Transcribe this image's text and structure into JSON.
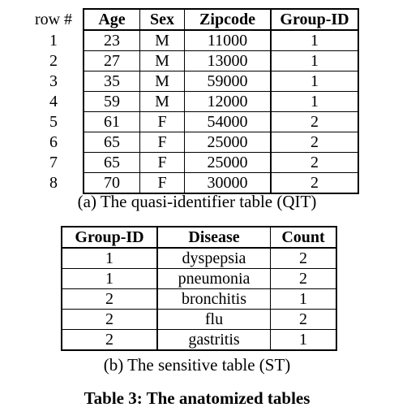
{
  "qit": {
    "headers": {
      "row": "row #",
      "age": "Age",
      "sex": "Sex",
      "zipcode": "Zipcode",
      "group_id": "Group-ID"
    },
    "rows": [
      {
        "row": "1",
        "age": "23",
        "sex": "M",
        "zipcode": "11000",
        "group_id": "1"
      },
      {
        "row": "2",
        "age": "27",
        "sex": "M",
        "zipcode": "13000",
        "group_id": "1"
      },
      {
        "row": "3",
        "age": "35",
        "sex": "M",
        "zipcode": "59000",
        "group_id": "1"
      },
      {
        "row": "4",
        "age": "59",
        "sex": "M",
        "zipcode": "12000",
        "group_id": "1"
      },
      {
        "row": "5",
        "age": "61",
        "sex": "F",
        "zipcode": "54000",
        "group_id": "2"
      },
      {
        "row": "6",
        "age": "65",
        "sex": "F",
        "zipcode": "25000",
        "group_id": "2"
      },
      {
        "row": "7",
        "age": "65",
        "sex": "F",
        "zipcode": "25000",
        "group_id": "2"
      },
      {
        "row": "8",
        "age": "70",
        "sex": "F",
        "zipcode": "30000",
        "group_id": "2"
      }
    ],
    "caption": "(a) The quasi-identifier table (QIT)"
  },
  "st": {
    "headers": {
      "group_id": "Group-ID",
      "disease": "Disease",
      "count": "Count"
    },
    "rows": [
      {
        "group_id": "1",
        "disease": "dyspepsia",
        "count": "2"
      },
      {
        "group_id": "1",
        "disease": "pneumonia",
        "count": "2"
      },
      {
        "group_id": "2",
        "disease": "bronchitis",
        "count": "1"
      },
      {
        "group_id": "2",
        "disease": "flu",
        "count": "2"
      },
      {
        "group_id": "2",
        "disease": "gastritis",
        "count": "1"
      }
    ],
    "caption": "(b) The sensitive table (ST)"
  },
  "table_title": "Table 3: The anatomized tables"
}
